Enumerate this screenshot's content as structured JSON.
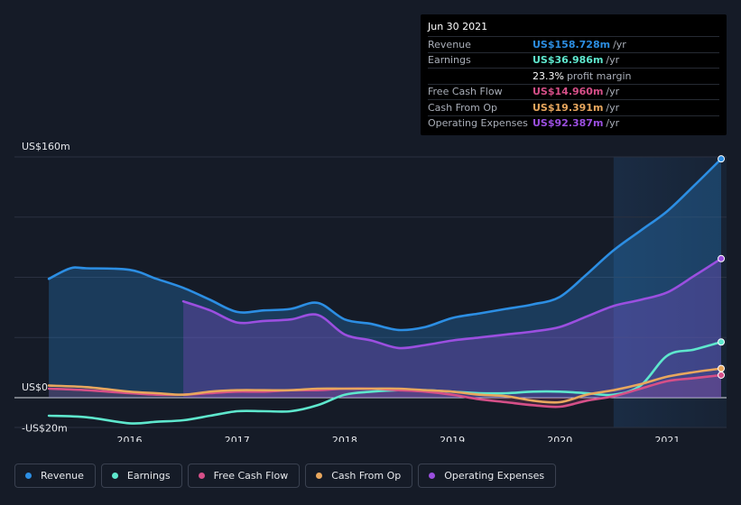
{
  "chart_data": {
    "type": "line",
    "y_unit": "US$ millions",
    "ylim": [
      -20,
      160
    ],
    "y_labels": [
      "US$160m",
      "US$0",
      "-US$20m"
    ],
    "x_ticks": [
      "2016",
      "2017",
      "2018",
      "2019",
      "2020",
      "2021"
    ],
    "x_tick_values": [
      2016,
      2017,
      2018,
      2019,
      2020,
      2021
    ],
    "xlim": [
      2014.93,
      2021.55
    ],
    "forecast_shade_start": 2020.5,
    "series": [
      {
        "name": "Revenue",
        "color": "#2c8ee3",
        "x": [
          2015.25,
          2015.45,
          2015.6,
          2016.0,
          2016.25,
          2016.5,
          2016.75,
          2017.0,
          2017.25,
          2017.5,
          2017.75,
          2018.0,
          2018.25,
          2018.5,
          2018.75,
          2019.0,
          2019.25,
          2019.5,
          2019.75,
          2020.0,
          2020.25,
          2020.5,
          2020.75,
          2021.0,
          2021.25,
          2021.5
        ],
        "values": [
          79,
          86,
          86,
          85,
          79,
          73,
          65,
          57,
          58,
          59,
          63,
          52,
          49,
          45,
          47,
          53,
          56,
          59,
          62,
          67,
          82,
          98,
          111,
          124,
          141,
          158.7
        ]
      },
      {
        "name": "Earnings",
        "color": "#5ee7cd",
        "x": [
          2015.25,
          2015.6,
          2016.0,
          2016.25,
          2016.5,
          2016.75,
          2017.0,
          2017.25,
          2017.5,
          2017.75,
          2018.0,
          2018.25,
          2018.5,
          2018.75,
          2019.0,
          2019.25,
          2019.5,
          2019.75,
          2020.0,
          2020.25,
          2020.5,
          2020.75,
          2021.0,
          2021.25,
          2021.5
        ],
        "values": [
          -12,
          -13,
          -17,
          -16,
          -15,
          -12,
          -9,
          -9,
          -9,
          -5,
          2,
          4,
          5,
          5,
          4,
          3,
          3,
          4,
          4,
          3,
          2,
          8,
          28,
          32,
          37
        ]
      },
      {
        "name": "Free Cash Flow",
        "color": "#d64f88",
        "x": [
          2015.25,
          2015.6,
          2016.0,
          2016.25,
          2016.5,
          2016.75,
          2017.0,
          2017.25,
          2017.5,
          2017.75,
          2018.0,
          2018.25,
          2018.5,
          2018.75,
          2019.0,
          2019.25,
          2019.5,
          2019.75,
          2020.0,
          2020.25,
          2020.5,
          2020.75,
          2021.0,
          2021.25,
          2021.5
        ],
        "values": [
          6,
          5,
          3,
          2,
          2,
          3,
          4,
          4,
          5,
          5,
          6,
          6,
          5,
          4,
          2,
          -1,
          -3,
          -5,
          -6,
          -2,
          1,
          6,
          11,
          13,
          15
        ]
      },
      {
        "name": "Cash From Op",
        "color": "#e8a75e",
        "x": [
          2015.25,
          2015.6,
          2016.0,
          2016.25,
          2016.5,
          2016.75,
          2017.0,
          2017.25,
          2017.5,
          2017.75,
          2018.0,
          2018.25,
          2018.5,
          2018.75,
          2019.0,
          2019.25,
          2019.5,
          2019.75,
          2020.0,
          2020.25,
          2020.5,
          2020.75,
          2021.0,
          2021.25,
          2021.5
        ],
        "values": [
          8,
          7,
          4,
          3,
          2,
          4,
          5,
          5,
          5,
          6,
          6,
          6,
          6,
          5,
          4,
          2,
          1,
          -2,
          -3,
          2,
          5,
          9,
          14,
          17,
          19.4
        ]
      },
      {
        "name": "Operating Expenses",
        "color": "#9b4fe0",
        "x": [
          2016.5,
          2016.75,
          2017.0,
          2017.25,
          2017.5,
          2017.75,
          2018.0,
          2018.25,
          2018.5,
          2018.75,
          2019.0,
          2019.25,
          2019.5,
          2019.75,
          2020.0,
          2020.25,
          2020.5,
          2020.75,
          2021.0,
          2021.25,
          2021.5
        ],
        "values": [
          64,
          58,
          50,
          51,
          52,
          55,
          42,
          38,
          33,
          35,
          38,
          40,
          42,
          44,
          47,
          54,
          61,
          65,
          70,
          81,
          92.4
        ]
      }
    ]
  },
  "tooltip": {
    "date": "Jun 30 2021",
    "rows": [
      {
        "label": "Revenue",
        "value": "US$158.728m",
        "suffix": "/yr",
        "color": "#2c8ee3"
      },
      {
        "label": "Earnings",
        "value": "US$36.986m",
        "suffix": "/yr",
        "color": "#5ee7cd"
      },
      {
        "label": "",
        "value": "23.3%",
        "suffix": "profit margin",
        "color": "#ffffff"
      },
      {
        "label": "Free Cash Flow",
        "value": "US$14.960m",
        "suffix": "/yr",
        "color": "#d64f88"
      },
      {
        "label": "Cash From Op",
        "value": "US$19.391m",
        "suffix": "/yr",
        "color": "#e8a75e"
      },
      {
        "label": "Operating Expenses",
        "value": "US$92.387m",
        "suffix": "/yr",
        "color": "#9b4fe0"
      }
    ]
  },
  "legend": [
    {
      "label": "Revenue",
      "color": "#2c8ee3"
    },
    {
      "label": "Earnings",
      "color": "#5ee7cd"
    },
    {
      "label": "Free Cash Flow",
      "color": "#d64f88"
    },
    {
      "label": "Cash From Op",
      "color": "#e8a75e"
    },
    {
      "label": "Operating Expenses",
      "color": "#9b4fe0"
    }
  ]
}
